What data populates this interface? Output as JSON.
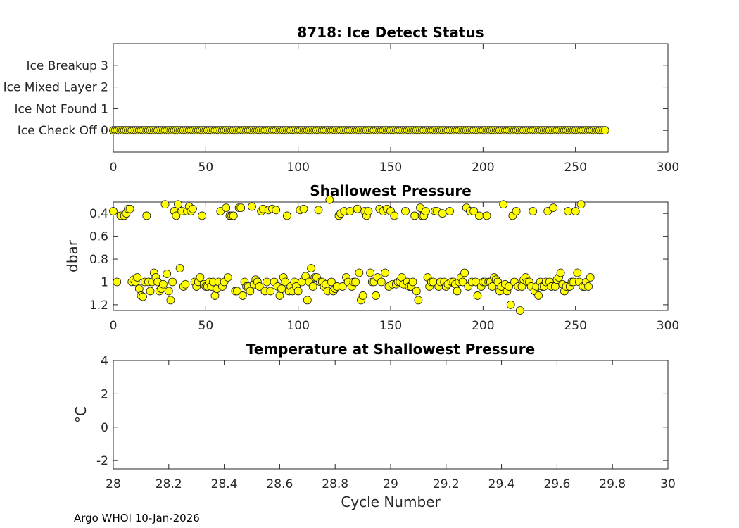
{
  "footer": "Argo WHOI 10-Jan-2026",
  "chart_data": [
    {
      "type": "scatter",
      "title": "8718: Ice Detect Status",
      "xlabel": "",
      "ylabel": "",
      "xlim": [
        0,
        300
      ],
      "ylim": [
        -1,
        4
      ],
      "xticks": [
        0,
        50,
        100,
        150,
        200,
        250,
        300
      ],
      "xtick_labels": [
        "0",
        "50",
        "100",
        "150",
        "200",
        "250",
        "300"
      ],
      "yticks": [
        0,
        1,
        2,
        3
      ],
      "ytick_labels": [
        "Ice Check Off 0",
        "Ice Not Found 1",
        "Ice Mixed Layer 2",
        "Ice Breakup 3"
      ],
      "y_reversed": false,
      "grid": true,
      "marker_color": "#ffff00",
      "x_range": [
        0,
        266
      ],
      "y_value": 0
    },
    {
      "type": "scatter",
      "title": "Shallowest Pressure",
      "xlabel": "",
      "ylabel": "dbar",
      "xlim": [
        0,
        300
      ],
      "ylim": [
        0.3,
        1.25
      ],
      "xticks": [
        0,
        50,
        100,
        150,
        200,
        250,
        300
      ],
      "xtick_labels": [
        "0",
        "50",
        "100",
        "150",
        "200",
        "250",
        "300"
      ],
      "yticks": [
        0.4,
        0.6,
        0.8,
        1,
        1.2
      ],
      "ytick_labels": [
        "0.4",
        "0.6",
        "0.8",
        "1",
        "1.2"
      ],
      "y_reversed": true,
      "grid": true,
      "marker_color": "#ffff00",
      "points": [
        [
          0,
          0.38
        ],
        [
          2,
          1.0
        ],
        [
          4,
          0.42
        ],
        [
          6,
          0.42
        ],
        [
          7,
          0.4
        ],
        [
          8,
          0.36
        ],
        [
          9,
          0.36
        ],
        [
          10,
          1.0
        ],
        [
          11,
          0.98
        ],
        [
          12,
          1.0
        ],
        [
          13,
          0.96
        ],
        [
          14,
          1.06
        ],
        [
          15,
          1.12
        ],
        [
          16,
          1.13
        ],
        [
          17,
          1.0
        ],
        [
          18,
          0.42
        ],
        [
          19,
          1.0
        ],
        [
          20,
          1.08
        ],
        [
          21,
          1.0
        ],
        [
          22,
          0.92
        ],
        [
          23,
          0.96
        ],
        [
          24,
          1.0
        ],
        [
          25,
          1.08
        ],
        [
          26,
          1.06
        ],
        [
          27,
          1.02
        ],
        [
          28,
          0.32
        ],
        [
          29,
          0.93
        ],
        [
          30,
          1.08
        ],
        [
          31,
          1.16
        ],
        [
          32,
          1.0
        ],
        [
          33,
          0.38
        ],
        [
          34,
          0.42
        ],
        [
          35,
          0.32
        ],
        [
          36,
          0.88
        ],
        [
          37,
          0.38
        ],
        [
          38,
          1.04
        ],
        [
          39,
          1.02
        ],
        [
          40,
          0.38
        ],
        [
          41,
          0.34
        ],
        [
          42,
          0.38
        ],
        [
          43,
          0.36
        ],
        [
          44,
          1.0
        ],
        [
          45,
          1.04
        ],
        [
          46,
          1.0
        ],
        [
          47,
          0.96
        ],
        [
          48,
          0.42
        ],
        [
          49,
          1.02
        ],
        [
          50,
          1.04
        ],
        [
          51,
          1.04
        ],
        [
          52,
          1.0
        ],
        [
          53,
          1.04
        ],
        [
          54,
          1.0
        ],
        [
          55,
          1.12
        ],
        [
          56,
          1.06
        ],
        [
          57,
          1.0
        ],
        [
          58,
          0.38
        ],
        [
          59,
          1.04
        ],
        [
          60,
          1.0
        ],
        [
          61,
          0.35
        ],
        [
          62,
          0.96
        ],
        [
          63,
          0.42
        ],
        [
          64,
          0.42
        ],
        [
          65,
          0.42
        ],
        [
          66,
          1.08
        ],
        [
          67,
          1.08
        ],
        [
          68,
          0.35
        ],
        [
          69,
          0.35
        ],
        [
          70,
          1.12
        ],
        [
          71,
          1.0
        ],
        [
          72,
          1.04
        ],
        [
          73,
          1.04
        ],
        [
          74,
          1.08
        ],
        [
          75,
          0.34
        ],
        [
          76,
          1.02
        ],
        [
          77,
          0.98
        ],
        [
          78,
          1.0
        ],
        [
          79,
          1.04
        ],
        [
          80,
          0.38
        ],
        [
          81,
          0.36
        ],
        [
          82,
          1.08
        ],
        [
          83,
          1.0
        ],
        [
          84,
          0.37
        ],
        [
          85,
          1.08
        ],
        [
          86,
          0.36
        ],
        [
          87,
          1.0
        ],
        [
          88,
          0.37
        ],
        [
          89,
          1.04
        ],
        [
          90,
          1.12
        ],
        [
          91,
          1.06
        ],
        [
          92,
          0.96
        ],
        [
          93,
          1.0
        ],
        [
          94,
          0.42
        ],
        [
          95,
          1.08
        ],
        [
          96,
          1.04
        ],
        [
          97,
          1.08
        ],
        [
          98,
          1.0
        ],
        [
          99,
          1.04
        ],
        [
          100,
          1.08
        ],
        [
          101,
          0.37
        ],
        [
          102,
          1.0
        ],
        [
          103,
          0.36
        ],
        [
          104,
          0.95
        ],
        [
          105,
          1.16
        ],
        [
          106,
          1.0
        ],
        [
          107,
          0.88
        ],
        [
          108,
          1.04
        ],
        [
          109,
          0.96
        ],
        [
          110,
          0.96
        ],
        [
          111,
          0.37
        ],
        [
          112,
          1.0
        ],
        [
          113,
          1.0
        ],
        [
          114,
          1.04
        ],
        [
          115,
          1.02
        ],
        [
          116,
          1.08
        ],
        [
          117,
          0.28
        ],
        [
          118,
          1.0
        ],
        [
          119,
          1.08
        ],
        [
          120,
          1.06
        ],
        [
          121,
          1.04
        ],
        [
          122,
          0.42
        ],
        [
          123,
          0.4
        ],
        [
          124,
          1.04
        ],
        [
          125,
          0.38
        ],
        [
          126,
          0.96
        ],
        [
          127,
          1.0
        ],
        [
          128,
          0.38
        ],
        [
          129,
          1.04
        ],
        [
          130,
          1.0
        ],
        [
          131,
          1.0
        ],
        [
          132,
          0.36
        ],
        [
          133,
          0.92
        ],
        [
          134,
          1.16
        ],
        [
          135,
          1.12
        ],
        [
          136,
          0.38
        ],
        [
          137,
          0.42
        ],
        [
          138,
          0.38
        ],
        [
          139,
          0.92
        ],
        [
          140,
          1.0
        ],
        [
          141,
          1.0
        ],
        [
          142,
          1.12
        ],
        [
          143,
          0.96
        ],
        [
          144,
          0.36
        ],
        [
          145,
          1.0
        ],
        [
          146,
          0.38
        ],
        [
          147,
          0.92
        ],
        [
          148,
          0.36
        ],
        [
          149,
          1.04
        ],
        [
          150,
          0.38
        ],
        [
          151,
          1.02
        ],
        [
          152,
          0.42
        ],
        [
          153,
          1.02
        ],
        [
          154,
          1.0
        ],
        [
          155,
          1.0
        ],
        [
          156,
          0.96
        ],
        [
          157,
          1.02
        ],
        [
          158,
          0.38
        ],
        [
          159,
          1.0
        ],
        [
          160,
          1.04
        ],
        [
          161,
          1.04
        ],
        [
          162,
          1.0
        ],
        [
          163,
          0.42
        ],
        [
          164,
          1.08
        ],
        [
          165,
          1.16
        ],
        [
          166,
          0.35
        ],
        [
          167,
          0.42
        ],
        [
          168,
          0.42
        ],
        [
          169,
          0.38
        ],
        [
          170,
          0.96
        ],
        [
          171,
          1.04
        ],
        [
          172,
          1.0
        ],
        [
          173,
          1.0
        ],
        [
          174,
          0.38
        ],
        [
          175,
          0.38
        ],
        [
          176,
          1.04
        ],
        [
          177,
          1.0
        ],
        [
          178,
          0.4
        ],
        [
          179,
          1.0
        ],
        [
          180,
          1.04
        ],
        [
          181,
          1.02
        ],
        [
          182,
          0.38
        ],
        [
          183,
          1.0
        ],
        [
          184,
          1.0
        ],
        [
          185,
          1.02
        ],
        [
          186,
          1.08
        ],
        [
          187,
          1.0
        ],
        [
          188,
          0.96
        ],
        [
          189,
          1.0
        ],
        [
          190,
          0.92
        ],
        [
          191,
          0.35
        ],
        [
          192,
          1.04
        ],
        [
          193,
          0.38
        ],
        [
          194,
          1.0
        ],
        [
          195,
          0.38
        ],
        [
          196,
          1.0
        ],
        [
          197,
          1.12
        ],
        [
          198,
          0.42
        ],
        [
          199,
          1.04
        ],
        [
          200,
          1.0
        ],
        [
          201,
          1.0
        ],
        [
          202,
          0.42
        ],
        [
          203,
          1.0
        ],
        [
          204,
          1.0
        ],
        [
          205,
          1.04
        ],
        [
          206,
          0.96
        ],
        [
          207,
          0.98
        ],
        [
          208,
          1.0
        ],
        [
          209,
          1.08
        ],
        [
          210,
          1.04
        ],
        [
          211,
          0.32
        ],
        [
          212,
          1.02
        ],
        [
          213,
          1.08
        ],
        [
          214,
          1.04
        ],
        [
          215,
          1.2
        ],
        [
          216,
          0.42
        ],
        [
          217,
          1.0
        ],
        [
          218,
          0.38
        ],
        [
          219,
          1.04
        ],
        [
          220,
          1.25
        ],
        [
          221,
          1.04
        ],
        [
          222,
          0.98
        ],
        [
          223,
          0.96
        ],
        [
          224,
          1.0
        ],
        [
          225,
          1.0
        ],
        [
          226,
          1.04
        ],
        [
          227,
          0.38
        ],
        [
          228,
          1.08
        ],
        [
          229,
          1.04
        ],
        [
          230,
          1.12
        ],
        [
          231,
          1.0
        ],
        [
          232,
          1.04
        ],
        [
          233,
          1.04
        ],
        [
          234,
          1.0
        ],
        [
          235,
          0.38
        ],
        [
          236,
          1.0
        ],
        [
          237,
          1.04
        ],
        [
          238,
          0.35
        ],
        [
          239,
          1.04
        ],
        [
          240,
          0.98
        ],
        [
          241,
          0.96
        ],
        [
          242,
          0.92
        ],
        [
          243,
          1.02
        ],
        [
          244,
          1.08
        ],
        [
          245,
          1.04
        ],
        [
          246,
          0.38
        ],
        [
          247,
          1.04
        ],
        [
          248,
          1.0
        ],
        [
          249,
          1.0
        ],
        [
          250,
          0.38
        ],
        [
          251,
          0.92
        ],
        [
          252,
          1.0
        ],
        [
          253,
          0.32
        ],
        [
          254,
          1.04
        ],
        [
          255,
          1.04
        ],
        [
          256,
          1.0
        ],
        [
          257,
          1.04
        ],
        [
          258,
          0.96
        ]
      ]
    },
    {
      "type": "scatter",
      "title": "Temperature at Shallowest Pressure",
      "xlabel": "Cycle Number",
      "ylabel": "°C",
      "xlim": [
        28,
        30
      ],
      "ylim": [
        -2.5,
        4
      ],
      "xticks": [
        28,
        28.2,
        28.4,
        28.6,
        28.8,
        29,
        29.2,
        29.4,
        29.6,
        29.8,
        30
      ],
      "xtick_labels": [
        "28",
        "28.2",
        "28.4",
        "28.6",
        "28.8",
        "29",
        "29.2",
        "29.4",
        "29.6",
        "29.8",
        "30"
      ],
      "yticks": [
        -2,
        0,
        2,
        4
      ],
      "ytick_labels": [
        "-2",
        "0",
        "2",
        "4"
      ],
      "y_reversed": false,
      "grid": true,
      "points": []
    }
  ]
}
